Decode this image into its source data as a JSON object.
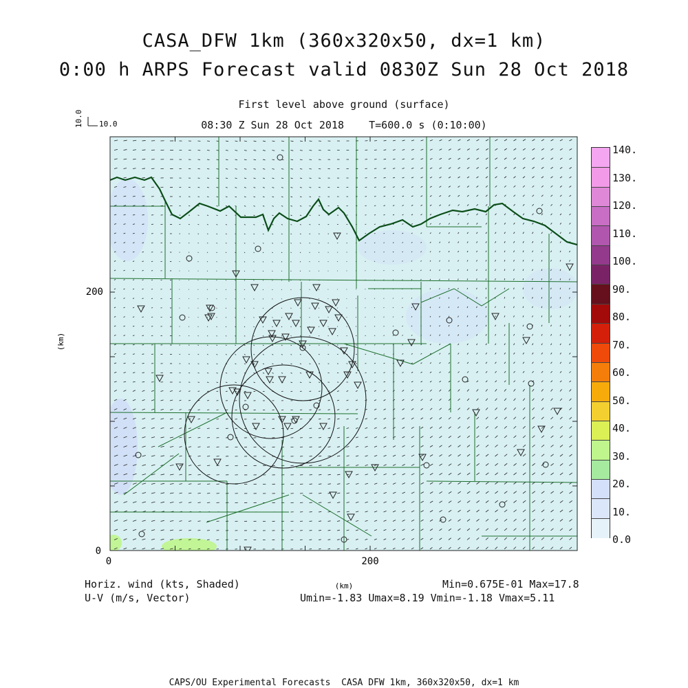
{
  "title": {
    "line1": "CASA_DFW 1km (360x320x50, dx=1 km)",
    "line2": "0:00 h ARPS Forecast valid 0830Z Sun 28 Oct 2018"
  },
  "subtitle": {
    "level": "First level above ground (surface)",
    "time": "08:30 Z Sun 28 Oct 2018    T=600.0 s (0:10:00)"
  },
  "vector_key": {
    "vertical": "10.0",
    "horizontal": "10.0"
  },
  "axes": {
    "x_ticks": [
      "0",
      "200"
    ],
    "y_ticks": [
      "0",
      "200"
    ],
    "xlabel": "(km)",
    "ylabel": "(km)"
  },
  "legend": {
    "field_name": "Horiz. wind (kts, Shaded)",
    "vector_name": "U-V (m/s, Vector)",
    "minmax": "Min=0.675E-01 Max=17.8",
    "uv_stats": "Umin=-1.83 Umax=8.19 Vmin=-1.18 Vmax=5.11"
  },
  "colorbar": {
    "labels": [
      "140.",
      "130.",
      "120.",
      "110.",
      "100.",
      "90.",
      "80.",
      "70.",
      "60.",
      "50.",
      "40.",
      "30.",
      "20.",
      "10.",
      "0.0"
    ],
    "colors": [
      "#f4a6f0",
      "#f29ae8",
      "#e088d8",
      "#c86ec4",
      "#b056ae",
      "#933a8c",
      "#7a2266",
      "#65101c",
      "#a30a0a",
      "#d4200a",
      "#f04a0a",
      "#f57e0a",
      "#f7ab0a",
      "#f3d030",
      "#dbf055",
      "#bff58c",
      "#a6eaa0",
      "#d4e0fa",
      "#dce6fa",
      "#e6f2fa"
    ]
  },
  "map": {
    "background": "#d8f0f2",
    "county_color": "#1b6e2a",
    "river_color": "#0b4d18",
    "station_color": "#222222",
    "radar_circle_color": "#111111"
  },
  "footer": "CAPS/OU Experimental Forecasts  CASA DFW 1km, 360x320x50, dx=1 km"
}
